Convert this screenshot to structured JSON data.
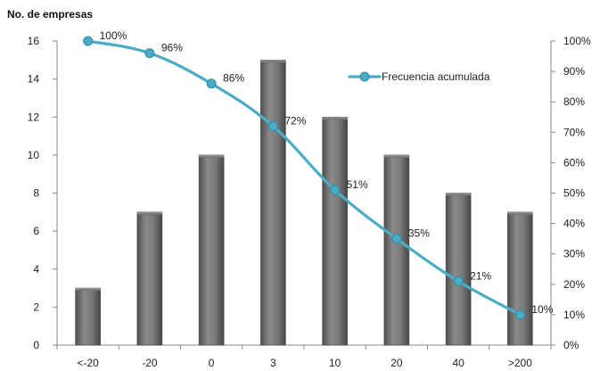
{
  "chart_data": {
    "type": "bar",
    "ylabel": "No. de empresas",
    "categories": [
      "<-20",
      "-20",
      "0",
      "3",
      "10",
      "20",
      "40",
      ">200"
    ],
    "series": [
      {
        "values": [
          3,
          7,
          10,
          15,
          12,
          10,
          8,
          7
        ],
        "kind": "bar",
        "axis": "left",
        "color": "#6b6b6b"
      },
      {
        "name": "Frecuencia acumulada",
        "kind": "line",
        "axis": "right",
        "color": "#4bacc6",
        "values": [
          100,
          96,
          86,
          72,
          51,
          35,
          21,
          10
        ],
        "labels": [
          "100%",
          "96%",
          "86%",
          "72%",
          "51%",
          "35%",
          "21%",
          "10%"
        ]
      }
    ],
    "ylim": [
      0,
      16
    ],
    "yticks": [
      "0",
      "2",
      "4",
      "6",
      "8",
      "10",
      "12",
      "14",
      "16"
    ],
    "y2lim": [
      0,
      100
    ],
    "y2ticks": [
      "0%",
      "10%",
      "20%",
      "30%",
      "40%",
      "50%",
      "60%",
      "70%",
      "80%",
      "90%",
      "100%"
    ],
    "grid": false,
    "legend": "top-right"
  }
}
